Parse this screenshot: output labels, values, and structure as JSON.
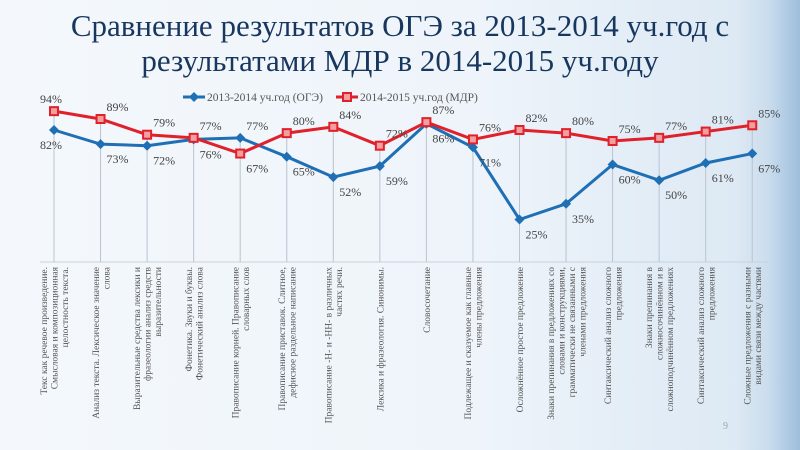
{
  "title_line1": "Сравнение результатов ОГЭ за 2013-2014 уч.год с",
  "title_line2": "результатами МДР в 2014-2015 уч.году",
  "page_number": "9",
  "chart_data": {
    "type": "line",
    "title": "",
    "legend_position": "top",
    "grid": false,
    "drop_lines": true,
    "ylim": [
      0,
      100
    ],
    "value_suffix": "%",
    "categories": [
      [
        "Текс как речевое произведение.",
        "Смысловая и композиционная",
        "целостность текста."
      ],
      [
        "Анализ текста. Лексическое значение",
        "слова"
      ],
      [
        "Выразительные средства лексики и",
        "фразеологии анализ средств",
        "выразительности"
      ],
      [
        "Фонетика. Звуки и буквы.",
        "Фонетический анализ слова"
      ],
      [
        "Правописание корней. Правописание",
        "словарных слов"
      ],
      [
        "Правописание приставок. Слитное,",
        "дефисное раздельное написание"
      ],
      [
        "Правописание -Н- и -НН- в различных",
        "частях речи."
      ],
      [
        "Лексика и фразеология. Синонимы."
      ],
      [
        "Словосочетание"
      ],
      [
        "Подлежащее и сказуемое как главные",
        "члены предложения"
      ],
      [
        "Осложнённое простое предложение"
      ],
      [
        "Знаки препинания в предложениях со",
        "словами и конструкциями,",
        "грамматически не связанными с",
        "членами предложения"
      ],
      [
        "Синтаксический анализ сложного",
        "предложения"
      ],
      [
        "Знаки препинания в",
        "сложносочинённом и в",
        "сложноподчинённом предложениях"
      ],
      [
        "Синтаксический анализ сложного",
        "предложения"
      ],
      [
        "Сложные предложения с разными",
        "видами связи между  частями"
      ]
    ],
    "series": [
      {
        "name": "2013-2014 уч.год (ОГЭ)",
        "color": "#1f6fb5",
        "marker": "diamond",
        "values": [
          82,
          73,
          72,
          76,
          77,
          65,
          52,
          59,
          86,
          71,
          25,
          35,
          60,
          50,
          61,
          67
        ]
      },
      {
        "name": "2014-2015 уч.год (МДР)",
        "color": "#e0202a",
        "marker": "square",
        "values": [
          94,
          89,
          79,
          77,
          67,
          80,
          84,
          72,
          87,
          76,
          82,
          80,
          75,
          77,
          81,
          85
        ]
      }
    ]
  }
}
